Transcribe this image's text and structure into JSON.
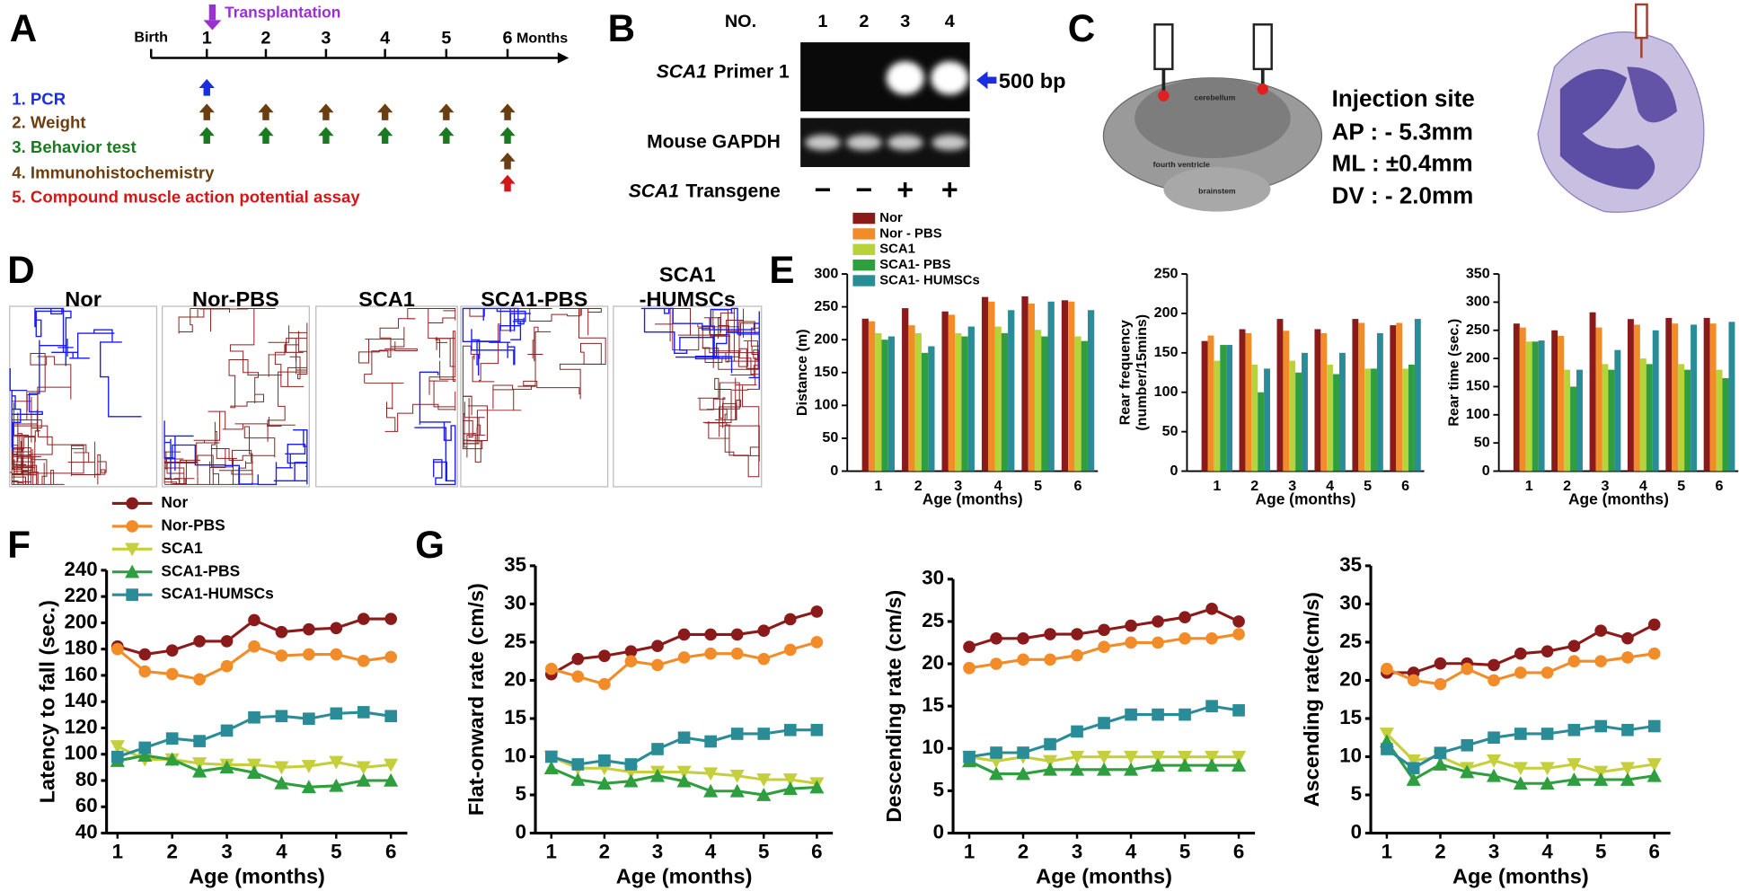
{
  "panel_labels": [
    "A",
    "B",
    "C",
    "D",
    "E",
    "F",
    "G"
  ],
  "timeline": {
    "start": "Birth",
    "ticks": [
      "1",
      "2",
      "3",
      "4",
      "5",
      "6"
    ],
    "unit": "Months",
    "event": "Transplantation",
    "steps": [
      "1. PCR",
      "2. Weight",
      "3. Behavior test",
      "4. Immunohistochemistry",
      "5. Compound muscle action potential assay"
    ]
  },
  "gel": {
    "header": "NO.",
    "lanes": [
      "1",
      "2",
      "3",
      "4"
    ],
    "primer_gene": "SCA1",
    "primer_label": "Primer 1",
    "marker": "500 bp",
    "control": "Mouse GAPDH",
    "transgene_gene": "SCA1",
    "transgene_label": "Transgene",
    "status": [
      "−",
      "−",
      "+",
      "+"
    ]
  },
  "injection": {
    "title": "Injection site",
    "coords": [
      "AP : - 5.3mm",
      "ML : ±0.4mm",
      "DV : - 2.0mm"
    ],
    "regions": [
      "cerebellum",
      "fourth ventricle",
      "brainstem"
    ]
  },
  "tracking": {
    "groups": [
      [
        "Nor"
      ],
      [
        "Nor-PBS"
      ],
      [
        "SCA1"
      ],
      [
        "SCA1-PBS"
      ],
      [
        "SCA1",
        "-HUMSCs"
      ]
    ]
  },
  "chart_data": [
    {
      "type": "bar",
      "ylabel": "Distance (m)",
      "xlabel": "Age (months)",
      "legend": "upper left",
      "categories": [
        "1",
        "2",
        "3",
        "4",
        "5",
        "6"
      ],
      "ylim": [
        0,
        300
      ],
      "yticks": [
        0,
        50,
        100,
        150,
        200,
        250,
        300
      ],
      "series": [
        {
          "name": "Nor",
          "color": "#8b1a1a",
          "values": [
            232,
            248,
            243,
            265,
            266,
            260
          ]
        },
        {
          "name": "Nor - PBS",
          "color": "#f28c28",
          "values": [
            228,
            222,
            238,
            258,
            255,
            258
          ]
        },
        {
          "name": "SCA1",
          "color": "#b8d23a",
          "values": [
            210,
            210,
            210,
            220,
            215,
            205
          ]
        },
        {
          "name": "SCA1- PBS",
          "color": "#2e9e3e",
          "values": [
            200,
            180,
            205,
            210,
            205,
            198
          ]
        },
        {
          "name": "SCA1- HUMSCs",
          "color": "#2a8c96",
          "values": [
            205,
            190,
            220,
            245,
            258,
            245
          ]
        }
      ]
    },
    {
      "type": "bar",
      "ylabel": [
        "Rear frequency",
        "(number/15mins)"
      ],
      "xlabel": "Age (months)",
      "categories": [
        "1",
        "2",
        "3",
        "4",
        "5",
        "6"
      ],
      "ylim": [
        0,
        250
      ],
      "yticks": [
        0,
        50,
        100,
        150,
        200,
        250
      ],
      "series": [
        {
          "color": "#8b1a1a",
          "values": [
            165,
            180,
            193,
            180,
            193,
            185
          ]
        },
        {
          "color": "#f28c28",
          "values": [
            172,
            175,
            178,
            175,
            188,
            188
          ]
        },
        {
          "color": "#b8d23a",
          "values": [
            140,
            135,
            140,
            135,
            130,
            130
          ]
        },
        {
          "color": "#2e9e3e",
          "values": [
            160,
            100,
            125,
            123,
            130,
            135
          ]
        },
        {
          "color": "#2a8c96",
          "values": [
            160,
            130,
            150,
            150,
            175,
            193
          ]
        }
      ]
    },
    {
      "type": "bar",
      "ylabel": "Rear time (sec.)",
      "xlabel": "Age (months)",
      "categories": [
        "1",
        "2",
        "3",
        "4",
        "5",
        "6"
      ],
      "ylim": [
        0,
        350
      ],
      "yticks": [
        0,
        50,
        100,
        150,
        200,
        250,
        300,
        350
      ],
      "series": [
        {
          "color": "#8b1a1a",
          "values": [
            262,
            250,
            282,
            270,
            272,
            272
          ]
        },
        {
          "color": "#f28c28",
          "values": [
            255,
            240,
            255,
            260,
            262,
            262
          ]
        },
        {
          "color": "#b8d23a",
          "values": [
            230,
            180,
            190,
            200,
            190,
            180
          ]
        },
        {
          "color": "#2e9e3e",
          "values": [
            230,
            150,
            180,
            190,
            180,
            165
          ]
        },
        {
          "color": "#2a8c96",
          "values": [
            232,
            180,
            215,
            250,
            260,
            265
          ]
        }
      ]
    },
    {
      "type": "line",
      "ylabel": "Latency to fall (sec.)",
      "xlabel": "Age (months)",
      "legend": "upper left",
      "x": [
        1,
        1.5,
        2,
        2.5,
        3,
        3.5,
        4,
        4.5,
        5,
        5.5,
        6
      ],
      "xlim": [
        0.8,
        6.3
      ],
      "xticks": [
        1,
        2,
        3,
        4,
        5,
        6
      ],
      "ylim": [
        40,
        240
      ],
      "yticks": [
        40,
        60,
        80,
        100,
        120,
        140,
        160,
        180,
        200,
        220,
        240
      ],
      "series": [
        {
          "name": "Nor",
          "color": "#8b1a1a",
          "marker": "circle",
          "values": [
            182,
            176,
            179,
            186,
            186,
            202,
            193,
            195,
            196,
            203,
            203
          ]
        },
        {
          "name": "Nor-PBS",
          "color": "#f28c28",
          "marker": "circle",
          "values": [
            180,
            163,
            161,
            157,
            167,
            182,
            175,
            176,
            176,
            171,
            174
          ]
        },
        {
          "name": "SCA1",
          "color": "#c5cf3c",
          "marker": "triangle-down",
          "values": [
            106,
            96,
            96,
            93,
            92,
            92,
            90,
            91,
            94,
            90,
            92
          ]
        },
        {
          "name": "SCA1-PBS",
          "color": "#2e9e3e",
          "marker": "triangle-up",
          "values": [
            95,
            99,
            96,
            87,
            90,
            86,
            78,
            75,
            76,
            80,
            80
          ]
        },
        {
          "name": "SCA1-HUMSCs",
          "color": "#2a8c96",
          "marker": "square",
          "values": [
            98,
            105,
            112,
            110,
            118,
            128,
            129,
            127,
            131,
            132,
            129
          ]
        }
      ]
    },
    {
      "type": "line",
      "ylabel": "Flat-onward rate (cm/s)",
      "xlabel": "Age (months)",
      "x": [
        1,
        1.5,
        2,
        2.5,
        3,
        3.5,
        4,
        4.5,
        5,
        5.5,
        6
      ],
      "xlim": [
        0.7,
        6.3
      ],
      "xticks": [
        1,
        2,
        3,
        4,
        5,
        6
      ],
      "ylim": [
        0,
        35
      ],
      "yticks": [
        0,
        5,
        10,
        15,
        20,
        25,
        30,
        35
      ],
      "series": [
        {
          "color": "#8b1a1a",
          "marker": "circle",
          "values": [
            20.8,
            22.8,
            23.2,
            23.8,
            24.5,
            26,
            26,
            26,
            26.5,
            28,
            29
          ]
        },
        {
          "color": "#f28c28",
          "marker": "circle",
          "values": [
            21.5,
            20.5,
            19.5,
            22.5,
            22,
            23,
            23.5,
            23.5,
            22.8,
            24,
            25
          ]
        },
        {
          "color": "#c5cf3c",
          "marker": "triangle-down",
          "values": [
            10,
            8.5,
            8.5,
            8,
            8,
            8,
            7.8,
            7.5,
            7,
            7,
            6.5
          ]
        },
        {
          "color": "#2e9e3e",
          "marker": "triangle-up",
          "values": [
            8.5,
            7,
            6.5,
            6.8,
            7.5,
            6.8,
            5.5,
            5.5,
            5,
            5.8,
            6
          ]
        },
        {
          "color": "#2a8c96",
          "marker": "square",
          "values": [
            10,
            9,
            9.5,
            9,
            11,
            12.5,
            12,
            13,
            13,
            13.5,
            13.5
          ]
        }
      ]
    },
    {
      "type": "line",
      "ylabel": "Descending rate (cm/s)",
      "xlabel": "Age (months)",
      "x": [
        1,
        1.5,
        2,
        2.5,
        3,
        3.5,
        4,
        4.5,
        5,
        5.5,
        6
      ],
      "xlim": [
        0.7,
        6.3
      ],
      "xticks": [
        1,
        2,
        3,
        4,
        5,
        6
      ],
      "ylim": [
        0,
        30
      ],
      "yticks": [
        0,
        5,
        10,
        15,
        20,
        25,
        30
      ],
      "series": [
        {
          "color": "#8b1a1a",
          "marker": "circle",
          "values": [
            22,
            23,
            23,
            23.5,
            23.5,
            24,
            24.5,
            25,
            25.5,
            26.5,
            25
          ]
        },
        {
          "color": "#f28c28",
          "marker": "circle",
          "values": [
            19.5,
            20,
            20.5,
            20.5,
            21,
            22,
            22.5,
            22.5,
            23,
            23,
            23.5
          ]
        },
        {
          "color": "#c5cf3c",
          "marker": "triangle-down",
          "values": [
            9,
            8.5,
            9,
            8.5,
            9,
            9,
            9,
            9,
            9,
            9,
            9
          ]
        },
        {
          "color": "#2e9e3e",
          "marker": "triangle-up",
          "values": [
            8.5,
            7,
            7,
            7.5,
            7.5,
            7.5,
            7.5,
            8,
            8,
            8,
            8
          ]
        },
        {
          "color": "#2a8c96",
          "marker": "square",
          "values": [
            9,
            9.5,
            9.5,
            10.5,
            12,
            13,
            14,
            14,
            14,
            15,
            14.5
          ]
        }
      ]
    },
    {
      "type": "line",
      "ylabel": "Ascending rate(cm/s)",
      "xlabel": "Age (months)",
      "x": [
        1,
        1.5,
        2,
        2.5,
        3,
        3.5,
        4,
        4.5,
        5,
        5.5,
        6
      ],
      "xlim": [
        0.7,
        6.3
      ],
      "xticks": [
        1,
        2,
        3,
        4,
        5,
        6
      ],
      "ylim": [
        0,
        35
      ],
      "yticks": [
        0,
        5,
        10,
        15,
        20,
        25,
        30,
        35
      ],
      "series": [
        {
          "color": "#8b1a1a",
          "marker": "circle",
          "values": [
            21,
            21,
            22.2,
            22.2,
            22,
            23.5,
            23.8,
            24.5,
            26.5,
            25.5,
            27.3
          ]
        },
        {
          "color": "#f28c28",
          "marker": "circle",
          "values": [
            21.5,
            20,
            19.5,
            21.5,
            20,
            21,
            21,
            22.5,
            22.5,
            23,
            23.5
          ]
        },
        {
          "color": "#c5cf3c",
          "marker": "triangle-down",
          "values": [
            13,
            9.5,
            10,
            8.5,
            9.5,
            8.5,
            8.5,
            9,
            8,
            8.5,
            9
          ]
        },
        {
          "color": "#2e9e3e",
          "marker": "triangle-up",
          "values": [
            12,
            7,
            9,
            8,
            7.5,
            6.5,
            6.5,
            7,
            7,
            7,
            7.5
          ]
        },
        {
          "color": "#2a8c96",
          "marker": "square",
          "values": [
            11,
            8.5,
            10.5,
            11.5,
            12.5,
            13,
            13,
            13.5,
            14,
            13.5,
            14
          ]
        }
      ]
    }
  ]
}
